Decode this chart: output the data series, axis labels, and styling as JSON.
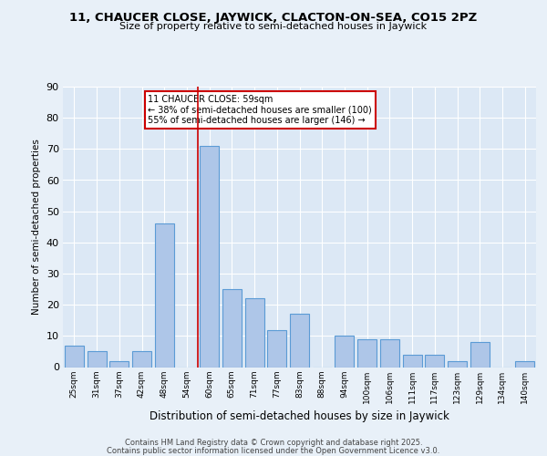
{
  "title1": "11, CHAUCER CLOSE, JAYWICK, CLACTON-ON-SEA, CO15 2PZ",
  "title2": "Size of property relative to semi-detached houses in Jaywick",
  "xlabel": "Distribution of semi-detached houses by size in Jaywick",
  "ylabel": "Number of semi-detached properties",
  "categories": [
    "25sqm",
    "31sqm",
    "37sqm",
    "42sqm",
    "48sqm",
    "54sqm",
    "60sqm",
    "65sqm",
    "71sqm",
    "77sqm",
    "83sqm",
    "88sqm",
    "94sqm",
    "100sqm",
    "106sqm",
    "111sqm",
    "117sqm",
    "123sqm",
    "129sqm",
    "134sqm",
    "140sqm"
  ],
  "values": [
    7,
    5,
    2,
    5,
    46,
    0,
    71,
    25,
    22,
    12,
    17,
    0,
    10,
    9,
    9,
    4,
    4,
    2,
    8,
    0,
    2
  ],
  "bar_color": "#aec6e8",
  "bar_edge_color": "#5b9bd5",
  "annotation_title": "11 CHAUCER CLOSE: 59sqm",
  "annotation_line1": "← 38% of semi-detached houses are smaller (100)",
  "annotation_line2": "55% of semi-detached houses are larger (146) →",
  "annotation_box_color": "#ffffff",
  "annotation_box_edge": "#cc0000",
  "vline_color": "#cc0000",
  "ylim": [
    0,
    90
  ],
  "yticks": [
    0,
    10,
    20,
    30,
    40,
    50,
    60,
    70,
    80,
    90
  ],
  "footer1": "Contains HM Land Registry data © Crown copyright and database right 2025.",
  "footer2": "Contains public sector information licensed under the Open Government Licence v3.0.",
  "bg_color": "#e8f0f8",
  "plot_bg_color": "#dce8f5"
}
